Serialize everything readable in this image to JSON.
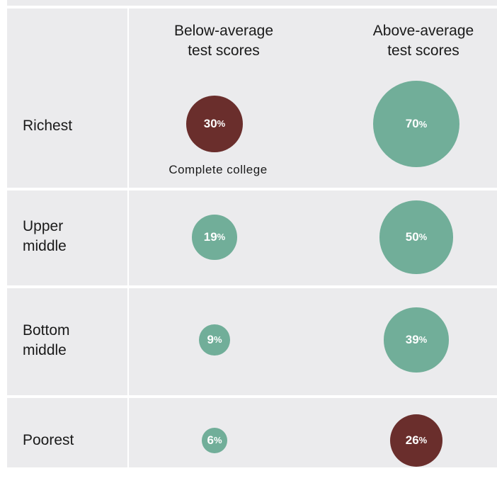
{
  "chart_data": {
    "type": "bubble-table",
    "columns": [
      {
        "label_lines": [
          "Below-average",
          "test scores"
        ]
      },
      {
        "label_lines": [
          "Above-average",
          "test scores"
        ]
      }
    ],
    "rows": [
      {
        "label_lines": [
          "Richest"
        ],
        "values": [
          30,
          70
        ]
      },
      {
        "label_lines": [
          "Upper",
          "middle"
        ],
        "values": [
          19,
          50
        ]
      },
      {
        "label_lines": [
          "Bottom",
          "middle"
        ],
        "values": [
          9,
          39
        ]
      },
      {
        "label_lines": [
          "Poorest"
        ],
        "values": [
          6,
          26
        ]
      }
    ],
    "highlighted": [
      [
        0,
        0
      ],
      [
        3,
        1
      ]
    ],
    "value_suffix": "%",
    "annotation": "Complete  college",
    "colors": {
      "default": "#71ae99",
      "highlight": "#6a2e2c",
      "background": "#ebebed",
      "grid": "#ffffff"
    }
  }
}
